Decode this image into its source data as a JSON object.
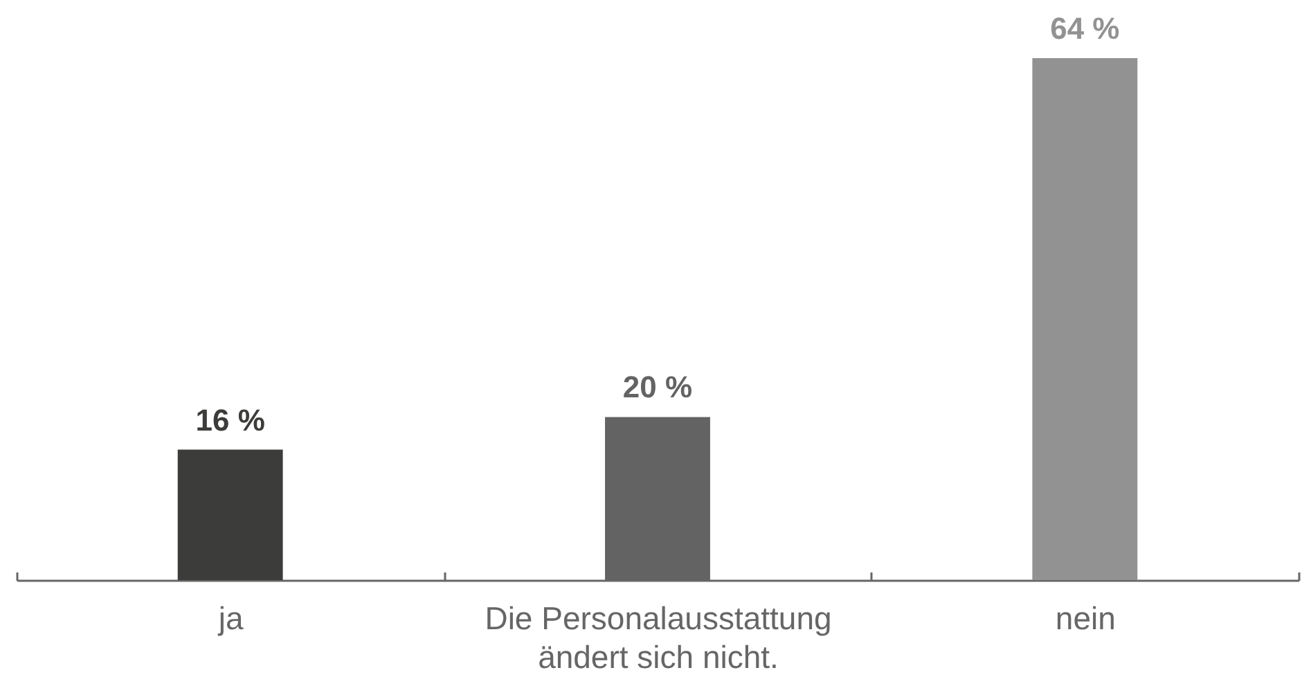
{
  "chart_data": {
    "type": "bar",
    "categories": [
      "ja",
      "Die Personalausstattung ändert sich nicht.",
      "nein"
    ],
    "values": [
      16,
      20,
      64
    ],
    "colors": [
      "#3c3c3b",
      "#636363",
      "#929292"
    ],
    "value_labels": [
      "16 %",
      "20 %",
      "64 %"
    ]
  }
}
